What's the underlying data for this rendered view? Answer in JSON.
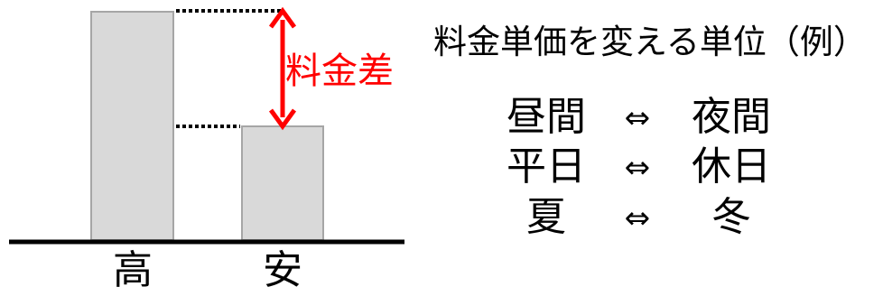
{
  "diagram": {
    "bars": [
      {
        "label": "高",
        "relative_height": 1.0
      },
      {
        "label": "安",
        "relative_height": 0.5
      }
    ],
    "difference_label": "料金差",
    "colors": {
      "bar_fill": "#d9d9d9",
      "bar_stroke": "#a6a6a6",
      "arrow": "#ff0000",
      "baseline": "#000000"
    }
  },
  "legend": {
    "heading": "料金単価を変える単位（例）",
    "rows": [
      {
        "left": "昼間",
        "symbol": "⇔",
        "right": "夜間"
      },
      {
        "left": "平日",
        "symbol": "⇔",
        "right": "休日"
      },
      {
        "left": "夏",
        "symbol": "⇔",
        "right": "冬"
      }
    ]
  }
}
